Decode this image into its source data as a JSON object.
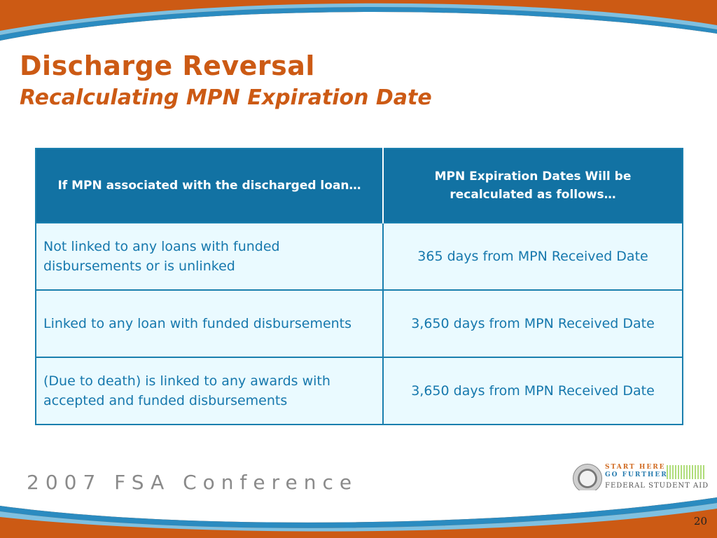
{
  "slide": {
    "title": "Discharge Reversal",
    "subtitle": "Recalculating MPN Expiration Date",
    "page_number": "20"
  },
  "table": {
    "headers": [
      "If MPN associated with the discharged loan…",
      "MPN Expiration Dates Will be recalculated as follows…"
    ],
    "rows": [
      {
        "condition": "Not linked to any loans with funded disbursements or is unlinked",
        "result": "365 days from MPN Received Date"
      },
      {
        "condition": "Linked to any loan with funded disbursements",
        "result": "3,650 days from MPN Received Date"
      },
      {
        "condition": "(Due to death) is linked  to any awards with accepted and funded disbursements",
        "result": "3,650 days from MPN Received Date"
      }
    ]
  },
  "footer": {
    "conference": "2007 FSA Conference",
    "logo_line1": "START HERE",
    "logo_line2": "GO FURTHER",
    "logo_line3": "FEDERAL STUDENT AID"
  },
  "colors": {
    "title": "#cc5a14",
    "header_bg": "#1272a3",
    "cell_bg": "#eafaff",
    "cell_text": "#1678ad",
    "banner_orange": "#cc5a14",
    "banner_blue": "#2b8bc0"
  }
}
